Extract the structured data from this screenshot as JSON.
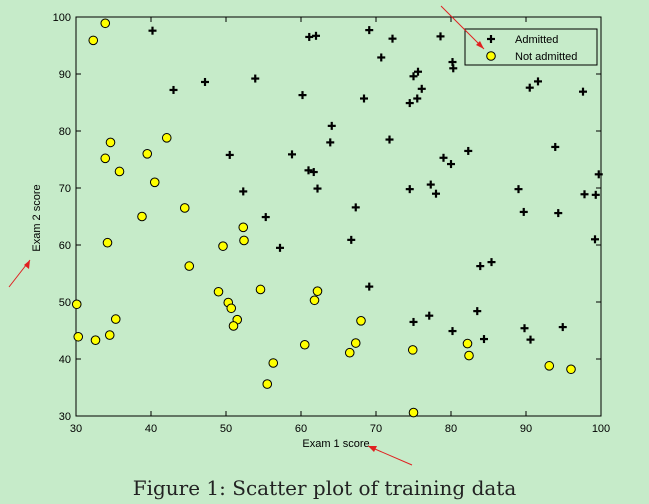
{
  "caption": "Figure 1: Scatter plot of training data",
  "chart_data": {
    "type": "scatter",
    "xlabel": "Exam 1 score",
    "ylabel": "Exam 2 score",
    "xlim": [
      30,
      100
    ],
    "ylim": [
      30,
      100
    ],
    "xticks": [
      30,
      40,
      50,
      60,
      70,
      80,
      90,
      100
    ],
    "yticks": [
      30,
      40,
      50,
      60,
      70,
      80,
      90,
      100
    ],
    "legend_position": "top-right",
    "series": [
      {
        "name": "Admitted",
        "marker": "plus",
        "color": "#000000",
        "points": [
          [
            40.2,
            97.6
          ],
          [
            61.1,
            96.5
          ],
          [
            62.0,
            96.7
          ],
          [
            69.1,
            97.7
          ],
          [
            72.2,
            96.2
          ],
          [
            78.6,
            96.6
          ],
          [
            43.0,
            87.2
          ],
          [
            47.2,
            88.6
          ],
          [
            53.9,
            89.2
          ],
          [
            60.2,
            86.3
          ],
          [
            70.7,
            92.9
          ],
          [
            68.4,
            85.7
          ],
          [
            75.0,
            89.6
          ],
          [
            75.6,
            90.4
          ],
          [
            74.5,
            84.9
          ],
          [
            75.5,
            85.7
          ],
          [
            76.1,
            87.4
          ],
          [
            80.2,
            92.1
          ],
          [
            80.3,
            91.0
          ],
          [
            90.5,
            87.6
          ],
          [
            91.6,
            88.7
          ],
          [
            97.6,
            86.9
          ],
          [
            64.1,
            80.9
          ],
          [
            63.9,
            78.0
          ],
          [
            71.8,
            78.5
          ],
          [
            82.3,
            76.5
          ],
          [
            50.5,
            75.8
          ],
          [
            58.8,
            75.9
          ],
          [
            61.0,
            73.1
          ],
          [
            61.7,
            72.8
          ],
          [
            52.3,
            69.4
          ],
          [
            62.2,
            69.9
          ],
          [
            74.5,
            69.8
          ],
          [
            77.3,
            70.6
          ],
          [
            78.0,
            69.0
          ],
          [
            79.0,
            75.3
          ],
          [
            80.0,
            74.2
          ],
          [
            89.0,
            69.8
          ],
          [
            93.9,
            77.2
          ],
          [
            97.8,
            68.9
          ],
          [
            99.3,
            68.8
          ],
          [
            99.7,
            72.4
          ],
          [
            55.3,
            64.9
          ],
          [
            67.3,
            66.6
          ],
          [
            89.7,
            65.8
          ],
          [
            94.3,
            65.6
          ],
          [
            57.2,
            59.5
          ],
          [
            66.7,
            60.9
          ],
          [
            99.2,
            61.0
          ],
          [
            83.9,
            56.3
          ],
          [
            85.4,
            57.0
          ],
          [
            69.1,
            52.7
          ],
          [
            83.5,
            48.4
          ],
          [
            75.0,
            46.5
          ],
          [
            77.1,
            47.6
          ],
          [
            80.2,
            44.9
          ],
          [
            84.4,
            43.5
          ],
          [
            89.8,
            45.4
          ],
          [
            90.6,
            43.4
          ],
          [
            94.9,
            45.6
          ]
        ]
      },
      {
        "name": "Not admitted",
        "marker": "circle",
        "color": "#ffff00",
        "points": [
          [
            34.6,
            78.0
          ],
          [
            30.3,
            43.9
          ],
          [
            35.8,
            72.9
          ],
          [
            45.1,
            56.3
          ],
          [
            39.5,
            76.0
          ],
          [
            34.2,
            60.4
          ],
          [
            33.9,
            98.9
          ],
          [
            32.3,
            95.9
          ],
          [
            40.5,
            71.0
          ],
          [
            42.1,
            78.8
          ],
          [
            44.5,
            66.5
          ],
          [
            33.9,
            75.2
          ],
          [
            38.8,
            65.0
          ],
          [
            34.5,
            44.2
          ],
          [
            32.6,
            43.3
          ],
          [
            35.3,
            47.0
          ],
          [
            30.1,
            49.6
          ],
          [
            49.6,
            59.8
          ],
          [
            52.3,
            63.1
          ],
          [
            52.4,
            60.8
          ],
          [
            49.0,
            51.8
          ],
          [
            50.3,
            49.9
          ],
          [
            50.7,
            48.9
          ],
          [
            51.5,
            46.9
          ],
          [
            51.0,
            45.8
          ],
          [
            54.6,
            52.2
          ],
          [
            56.3,
            39.3
          ],
          [
            55.5,
            35.6
          ],
          [
            60.5,
            42.5
          ],
          [
            61.8,
            50.3
          ],
          [
            62.2,
            51.9
          ],
          [
            66.5,
            41.1
          ],
          [
            67.3,
            42.8
          ],
          [
            68.0,
            46.7
          ],
          [
            74.9,
            41.6
          ],
          [
            75.0,
            30.6
          ],
          [
            82.2,
            42.7
          ],
          [
            82.4,
            40.6
          ],
          [
            93.1,
            38.8
          ],
          [
            96.0,
            38.2
          ]
        ]
      }
    ]
  }
}
